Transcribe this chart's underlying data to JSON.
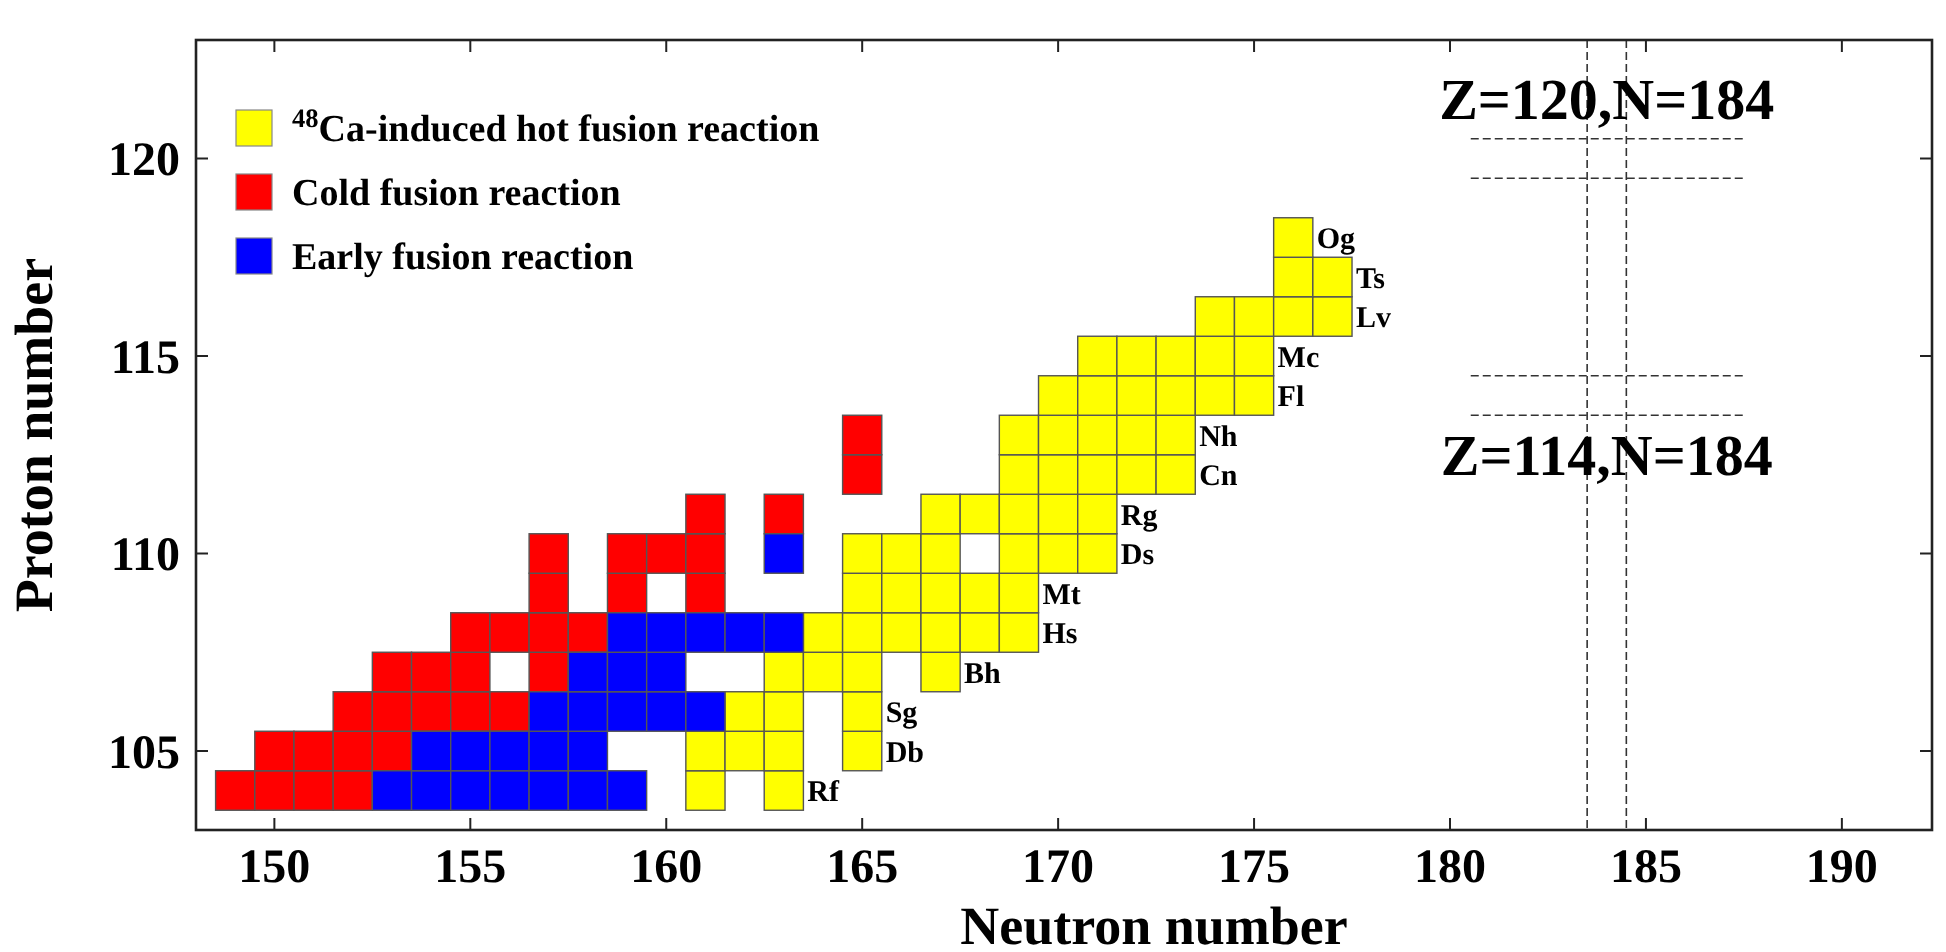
{
  "chart_data": {
    "type": "scatter",
    "xlabel": "Neutron number",
    "ylabel": "Proton number",
    "xlim": [
      148,
      192.3
    ],
    "ylim": [
      103,
      123
    ],
    "xticks": [
      150,
      155,
      160,
      165,
      170,
      175,
      180,
      185,
      190
    ],
    "yticks": [
      105,
      110,
      115,
      120
    ],
    "grid": false,
    "legend": "top left",
    "marker": "square",
    "series": [
      {
        "name": "$^{48}$Ca-induced hot fusion reaction",
        "color": "#ffff00",
        "x": [
          161,
          163,
          161,
          162,
          163,
          165,
          162,
          163,
          165,
          163,
          164,
          165,
          167,
          164,
          165,
          166,
          167,
          168,
          169,
          165,
          166,
          167,
          168,
          169,
          165,
          166,
          167,
          169,
          170,
          171,
          167,
          168,
          169,
          170,
          171,
          169,
          170,
          171,
          172,
          173,
          169,
          170,
          171,
          172,
          173,
          170,
          171,
          172,
          173,
          174,
          175,
          171,
          172,
          173,
          174,
          175,
          174,
          175,
          176,
          177,
          176,
          177,
          176
        ],
        "values": [
          104,
          104,
          105,
          105,
          105,
          105,
          106,
          106,
          106,
          107,
          107,
          107,
          107,
          108,
          108,
          108,
          108,
          108,
          108,
          109,
          109,
          109,
          109,
          109,
          110,
          110,
          110,
          110,
          110,
          110,
          111,
          111,
          111,
          111,
          111,
          112,
          112,
          112,
          112,
          112,
          113,
          113,
          113,
          113,
          113,
          114,
          114,
          114,
          114,
          114,
          114,
          115,
          115,
          115,
          115,
          115,
          116,
          116,
          116,
          116,
          117,
          117,
          118
        ]
      },
      {
        "name": "Cold fusion reaction",
        "color": "#ff0000",
        "x": [
          149,
          150,
          151,
          152,
          150,
          151,
          152,
          153,
          152,
          153,
          154,
          155,
          156,
          153,
          154,
          155,
          157,
          155,
          156,
          157,
          158,
          157,
          159,
          161,
          157,
          159,
          160,
          161,
          161,
          163,
          165,
          165
        ],
        "values": [
          104,
          104,
          104,
          104,
          105,
          105,
          105,
          105,
          106,
          106,
          106,
          106,
          106,
          107,
          107,
          107,
          107,
          108,
          108,
          108,
          108,
          109,
          109,
          109,
          110,
          110,
          110,
          110,
          111,
          111,
          112,
          113
        ]
      },
      {
        "name": "Early fusion reaction",
        "color": "#0000ff",
        "x": [
          153,
          154,
          155,
          156,
          157,
          158,
          159,
          154,
          155,
          156,
          157,
          158,
          157,
          158,
          159,
          160,
          161,
          158,
          159,
          160,
          159,
          160,
          161,
          162,
          163,
          163
        ],
        "values": [
          104,
          104,
          104,
          104,
          104,
          104,
          104,
          105,
          105,
          105,
          105,
          105,
          106,
          106,
          106,
          106,
          106,
          107,
          107,
          107,
          108,
          108,
          108,
          108,
          108,
          110
        ]
      }
    ],
    "ref_lines": [
      {
        "axis": "x",
        "value": 183.5,
        "line_style": "dashed"
      },
      {
        "axis": "x",
        "value": 184.5,
        "line_style": "dashed"
      },
      {
        "axis": "y",
        "value": 120.5,
        "line_style": "dashed",
        "label": "Z=120,N=184"
      },
      {
        "axis": "y",
        "value": 119.5,
        "line_style": "dashed"
      },
      {
        "axis": "y",
        "value": 114.5,
        "line_style": "dashed"
      },
      {
        "axis": "y",
        "value": 113.5,
        "line_style": "dashed",
        "label": "Z=114,N=184"
      }
    ],
    "annotations": [
      {
        "text": "Rf",
        "x": 163,
        "y": 104
      },
      {
        "text": "Db",
        "x": 165,
        "y": 105
      },
      {
        "text": "Sg",
        "x": 165,
        "y": 106
      },
      {
        "text": "Bh",
        "x": 167,
        "y": 107
      },
      {
        "text": "Hs",
        "x": 169,
        "y": 108
      },
      {
        "text": "Mt",
        "x": 169,
        "y": 109
      },
      {
        "text": "Ds",
        "x": 171,
        "y": 110
      },
      {
        "text": "Rg",
        "x": 171,
        "y": 111
      },
      {
        "text": "Cn",
        "x": 173,
        "y": 112
      },
      {
        "text": "Nh",
        "x": 173,
        "y": 113
      },
      {
        "text": "Fl",
        "x": 175,
        "y": 114
      },
      {
        "text": "Mc",
        "x": 175,
        "y": 115
      },
      {
        "text": "Lv",
        "x": 177,
        "y": 116
      },
      {
        "text": "Ts",
        "x": 177,
        "y": 117
      },
      {
        "text": "Og",
        "x": 176,
        "y": 118
      }
    ]
  }
}
